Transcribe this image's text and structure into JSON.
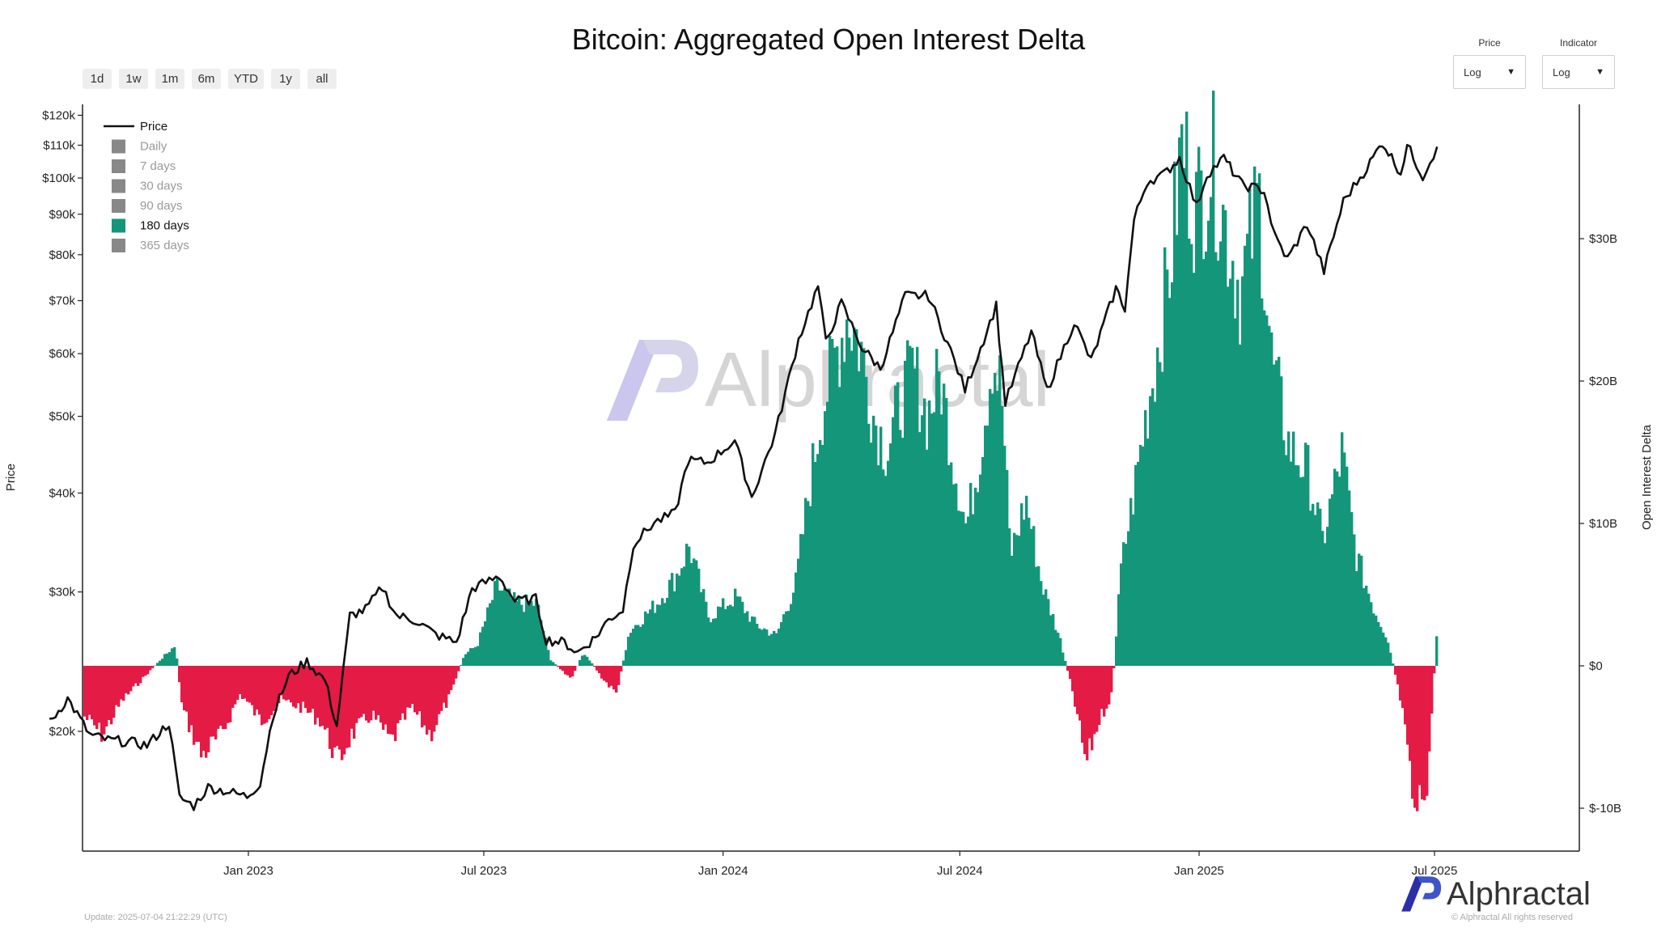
{
  "title": "Bitcoin: Aggregated Open Interest Delta",
  "range_buttons": [
    "1d",
    "1w",
    "1m",
    "6m",
    "YTD",
    "1y",
    "all"
  ],
  "controls": {
    "price": {
      "label": "Price",
      "value": "Log"
    },
    "indicator": {
      "label": "Indicator",
      "value": "Log"
    }
  },
  "footer": {
    "update": "Update: 2025-07-04 21:22:29 (UTC)",
    "brand": "Alphractal",
    "rights": "© Alphractal All rights reserved",
    "watermark": "Alphractal"
  },
  "colors": {
    "positive": "#14967A",
    "negative": "#E31B45",
    "price_line": "#111111",
    "legend_inactive": "#888888"
  },
  "chart_data": {
    "type": "bar",
    "title": "Bitcoin: Aggregated Open Interest Delta",
    "ylabel_left": "Price",
    "ylabel_right": "Open Interest Delta",
    "y_left_scale": "log",
    "y_left_ticks": [
      "$120k",
      "$110k",
      "$100k",
      "$90k",
      "$80k",
      "$70k",
      "$60k",
      "$50k",
      "$40k",
      "$30k",
      "$20k"
    ],
    "y_left_values": [
      120000,
      110000,
      100000,
      90000,
      80000,
      70000,
      60000,
      50000,
      40000,
      30000,
      20000
    ],
    "y_right_ticks": [
      "$30B",
      "$20B",
      "$10B",
      "$0",
      "$-10B"
    ],
    "y_right_values": [
      30,
      20,
      10,
      0,
      -10
    ],
    "x_ticks": [
      "Jan 2023",
      "Jul 2023",
      "Jan 2024",
      "Jul 2024",
      "Jan 2025",
      "Jul 2025"
    ],
    "legend": [
      {
        "name": "Price",
        "kind": "line",
        "active": true
      },
      {
        "name": "Daily",
        "kind": "box",
        "active": false
      },
      {
        "name": "7 days",
        "kind": "box",
        "active": false
      },
      {
        "name": "30 days",
        "kind": "box",
        "active": false
      },
      {
        "name": "90 days",
        "kind": "box",
        "active": false
      },
      {
        "name": "180 days",
        "kind": "box",
        "active": true
      },
      {
        "name": "365 days",
        "kind": "box",
        "active": false
      }
    ],
    "legend_position": "top-left",
    "grid": false,
    "price_series": [
      [
        "2022-08-01",
        20500
      ],
      [
        "2022-08-15",
        22000
      ],
      [
        "2022-09-01",
        19800
      ],
      [
        "2022-09-15",
        19500
      ],
      [
        "2022-10-01",
        19400
      ],
      [
        "2022-10-15",
        19200
      ],
      [
        "2022-11-01",
        20500
      ],
      [
        "2022-11-09",
        16500
      ],
      [
        "2022-11-20",
        16100
      ],
      [
        "2022-12-01",
        17000
      ],
      [
        "2022-12-15",
        16800
      ],
      [
        "2022-12-31",
        16550
      ],
      [
        "2023-01-10",
        17200
      ],
      [
        "2023-01-20",
        21000
      ],
      [
        "2023-02-01",
        23500
      ],
      [
        "2023-02-15",
        24500
      ],
      [
        "2023-03-01",
        23200
      ],
      [
        "2023-03-10",
        20300
      ],
      [
        "2023-03-20",
        28000
      ],
      [
        "2023-04-01",
        28500
      ],
      [
        "2023-04-14",
        30400
      ],
      [
        "2023-04-25",
        28000
      ],
      [
        "2023-05-10",
        27600
      ],
      [
        "2023-05-25",
        26500
      ],
      [
        "2023-06-10",
        25900
      ],
      [
        "2023-06-22",
        30300
      ],
      [
        "2023-07-13",
        31400
      ],
      [
        "2023-07-25",
        29200
      ],
      [
        "2023-08-10",
        29400
      ],
      [
        "2023-08-18",
        26100
      ],
      [
        "2023-09-01",
        25900
      ],
      [
        "2023-09-11",
        25150
      ],
      [
        "2023-09-25",
        26300
      ],
      [
        "2023-10-05",
        27700
      ],
      [
        "2023-10-16",
        28500
      ],
      [
        "2023-10-24",
        34500
      ],
      [
        "2023-11-09",
        36700
      ],
      [
        "2023-11-25",
        37700
      ],
      [
        "2023-12-05",
        44000
      ],
      [
        "2023-12-20",
        43700
      ],
      [
        "2024-01-10",
        46600
      ],
      [
        "2024-01-23",
        39500
      ],
      [
        "2024-02-10",
        47500
      ],
      [
        "2024-02-28",
        62500
      ],
      [
        "2024-03-14",
        73000
      ],
      [
        "2024-03-20",
        62000
      ],
      [
        "2024-04-01",
        69500
      ],
      [
        "2024-04-17",
        61000
      ],
      [
        "2024-05-01",
        57500
      ],
      [
        "2024-05-20",
        71000
      ],
      [
        "2024-06-07",
        71000
      ],
      [
        "2024-06-24",
        60500
      ],
      [
        "2024-07-05",
        54000
      ],
      [
        "2024-07-29",
        69000
      ],
      [
        "2024-08-05",
        52000
      ],
      [
        "2024-08-25",
        64000
      ],
      [
        "2024-09-06",
        53900
      ],
      [
        "2024-09-27",
        65800
      ],
      [
        "2024-10-10",
        58700
      ],
      [
        "2024-10-29",
        72500
      ],
      [
        "2024-11-05",
        68500
      ],
      [
        "2024-11-12",
        88500
      ],
      [
        "2024-11-22",
        99000
      ],
      [
        "2024-12-05",
        101000
      ],
      [
        "2024-12-17",
        106000
      ],
      [
        "2024-12-30",
        92000
      ],
      [
        "2025-01-07",
        101000
      ],
      [
        "2025-01-20",
        106000
      ],
      [
        "2025-02-03",
        98000
      ],
      [
        "2025-02-20",
        96500
      ],
      [
        "2025-02-28",
        84500
      ],
      [
        "2025-03-10",
        79000
      ],
      [
        "2025-03-25",
        87500
      ],
      [
        "2025-04-07",
        76300
      ],
      [
        "2025-04-22",
        93500
      ],
      [
        "2025-05-10",
        103000
      ],
      [
        "2025-05-22",
        111000
      ],
      [
        "2025-06-05",
        101500
      ],
      [
        "2025-06-10",
        110000
      ],
      [
        "2025-06-22",
        100500
      ],
      [
        "2025-07-03",
        109500
      ]
    ],
    "oi_delta_series_billions": [
      [
        "2022-08-01",
        -1.5
      ],
      [
        "2022-08-20",
        -3
      ],
      [
        "2022-09-10",
        -5
      ],
      [
        "2022-09-25",
        -2.5
      ],
      [
        "2022-10-10",
        -1
      ],
      [
        "2022-10-25",
        0.5
      ],
      [
        "2022-11-05",
        1.5
      ],
      [
        "2022-11-10",
        -3
      ],
      [
        "2022-11-25",
        -6.5
      ],
      [
        "2022-12-10",
        -5
      ],
      [
        "2022-12-25",
        -2
      ],
      [
        "2023-01-10",
        -4
      ],
      [
        "2023-01-25",
        -2.5
      ],
      [
        "2023-02-10",
        -3
      ],
      [
        "2023-02-25",
        -4
      ],
      [
        "2023-03-10",
        -7
      ],
      [
        "2023-03-20",
        -5
      ],
      [
        "2023-04-05",
        -3.5
      ],
      [
        "2023-04-20",
        -5.5
      ],
      [
        "2023-05-05",
        -3
      ],
      [
        "2023-05-20",
        -5
      ],
      [
        "2023-06-05",
        -2
      ],
      [
        "2023-06-15",
        0.8
      ],
      [
        "2023-06-25",
        1.5
      ],
      [
        "2023-07-10",
        5.8
      ],
      [
        "2023-07-25",
        4.5
      ],
      [
        "2023-08-10",
        4.5
      ],
      [
        "2023-08-20",
        0.5
      ],
      [
        "2023-09-05",
        -1
      ],
      [
        "2023-09-15",
        1
      ],
      [
        "2023-09-30",
        -1
      ],
      [
        "2023-10-10",
        -2
      ],
      [
        "2023-10-20",
        2.5
      ],
      [
        "2023-11-10",
        4.5
      ],
      [
        "2023-11-25",
        6.5
      ],
      [
        "2023-12-05",
        8.7
      ],
      [
        "2023-12-20",
        3.5
      ],
      [
        "2024-01-10",
        5
      ],
      [
        "2024-01-25",
        3
      ],
      [
        "2024-02-10",
        2.2
      ],
      [
        "2024-02-25",
        6
      ],
      [
        "2024-03-05",
        12
      ],
      [
        "2024-03-15",
        18
      ],
      [
        "2024-03-25",
        22
      ],
      [
        "2024-04-05",
        25.5
      ],
      [
        "2024-04-15",
        23
      ],
      [
        "2024-04-25",
        18
      ],
      [
        "2024-05-05",
        15.5
      ],
      [
        "2024-05-15",
        19
      ],
      [
        "2024-05-25",
        21.5
      ],
      [
        "2024-06-05",
        18
      ],
      [
        "2024-06-15",
        21
      ],
      [
        "2024-06-25",
        15
      ],
      [
        "2024-07-05",
        10
      ],
      [
        "2024-07-15",
        15
      ],
      [
        "2024-07-25",
        22.5
      ],
      [
        "2024-08-01",
        20
      ],
      [
        "2024-08-08",
        8
      ],
      [
        "2024-08-20",
        12
      ],
      [
        "2024-09-01",
        6
      ],
      [
        "2024-09-15",
        2
      ],
      [
        "2024-09-25",
        -2
      ],
      [
        "2024-10-05",
        -7
      ],
      [
        "2024-10-15",
        -4
      ],
      [
        "2024-10-25",
        -2
      ],
      [
        "2024-11-01",
        7
      ],
      [
        "2024-11-10",
        12
      ],
      [
        "2024-11-20",
        18
      ],
      [
        "2024-12-01",
        24
      ],
      [
        "2024-12-10",
        30
      ],
      [
        "2024-12-18",
        38
      ],
      [
        "2024-12-28",
        33
      ],
      [
        "2025-01-10",
        36.5
      ],
      [
        "2025-01-20",
        32
      ],
      [
        "2025-02-01",
        27
      ],
      [
        "2025-02-15",
        34
      ],
      [
        "2025-02-25",
        22
      ],
      [
        "2025-03-10",
        16
      ],
      [
        "2025-03-25",
        14
      ],
      [
        "2025-04-05",
        9
      ],
      [
        "2025-04-20",
        15.5
      ],
      [
        "2025-05-01",
        8
      ],
      [
        "2025-05-15",
        4
      ],
      [
        "2025-05-25",
        2
      ],
      [
        "2025-06-05",
        -3
      ],
      [
        "2025-06-15",
        -11
      ],
      [
        "2025-06-25",
        -8
      ],
      [
        "2025-07-02",
        3
      ]
    ]
  }
}
